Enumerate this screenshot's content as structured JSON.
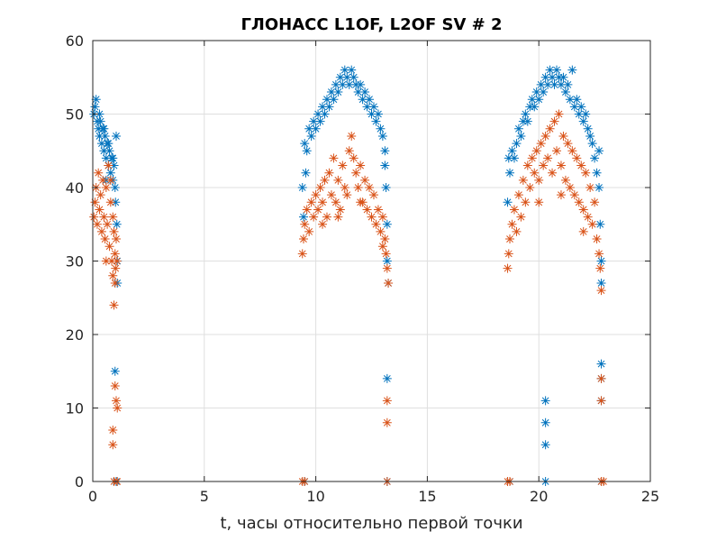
{
  "chart_data": {
    "type": "scatter",
    "title": "ГЛОНАСС L1OF, L2OF SV # 2",
    "xlabel": "t, часы относительно первой точки",
    "ylabel": "",
    "xlim": [
      0,
      25
    ],
    "ylim": [
      0,
      60
    ],
    "xticks": [
      0,
      5,
      10,
      15,
      20,
      25
    ],
    "yticks": [
      0,
      10,
      20,
      30,
      40,
      50,
      60
    ],
    "xtick_labels": [
      "0",
      "5",
      "10",
      "15",
      "20",
      "25"
    ],
    "ytick_labels": [
      "0",
      "10",
      "20",
      "30",
      "40",
      "50",
      "60"
    ],
    "grid": true,
    "marker": "*",
    "series": [
      {
        "name": "L1OF",
        "color": "#0072BD",
        "points": [
          [
            0.05,
            50
          ],
          [
            0.1,
            51
          ],
          [
            0.15,
            52
          ],
          [
            0.2,
            49
          ],
          [
            0.25,
            48
          ],
          [
            0.3,
            47
          ],
          [
            0.35,
            49
          ],
          [
            0.4,
            46
          ],
          [
            0.45,
            48
          ],
          [
            0.5,
            45
          ],
          [
            0.55,
            47
          ],
          [
            0.6,
            44
          ],
          [
            0.65,
            46
          ],
          [
            0.7,
            43
          ],
          [
            0.75,
            45
          ],
          [
            0.8,
            42
          ],
          [
            0.85,
            44
          ],
          [
            0.9,
            41
          ],
          [
            0.95,
            43
          ],
          [
            1.0,
            40
          ],
          [
            1.02,
            38
          ],
          [
            1.05,
            47
          ],
          [
            1.08,
            35
          ],
          [
            1.1,
            30
          ],
          [
            1.1,
            27
          ],
          [
            0.3,
            50
          ],
          [
            0.5,
            48
          ],
          [
            0.7,
            46
          ],
          [
            0.9,
            44
          ],
          [
            0.6,
            41
          ],
          [
            1.0,
            15
          ],
          [
            1.05,
            0
          ],
          [
            9.4,
            40
          ],
          [
            9.5,
            46
          ],
          [
            9.6,
            45
          ],
          [
            9.7,
            48
          ],
          [
            9.8,
            47
          ],
          [
            9.9,
            49
          ],
          [
            10.0,
            48
          ],
          [
            10.1,
            50
          ],
          [
            10.2,
            49
          ],
          [
            10.3,
            51
          ],
          [
            10.4,
            50
          ],
          [
            10.5,
            52
          ],
          [
            10.6,
            51
          ],
          [
            10.7,
            53
          ],
          [
            10.8,
            52
          ],
          [
            10.9,
            54
          ],
          [
            11.0,
            53
          ],
          [
            11.1,
            55
          ],
          [
            11.2,
            54
          ],
          [
            11.3,
            56
          ],
          [
            11.4,
            55
          ],
          [
            11.5,
            54
          ],
          [
            11.6,
            56
          ],
          [
            11.7,
            55
          ],
          [
            11.8,
            54
          ],
          [
            11.9,
            53
          ],
          [
            12.0,
            54
          ],
          [
            12.1,
            52
          ],
          [
            12.2,
            53
          ],
          [
            12.3,
            51
          ],
          [
            12.4,
            52
          ],
          [
            12.5,
            50
          ],
          [
            12.6,
            51
          ],
          [
            12.7,
            49
          ],
          [
            12.8,
            50
          ],
          [
            12.9,
            48
          ],
          [
            13.0,
            47
          ],
          [
            13.1,
            45
          ],
          [
            13.15,
            40
          ],
          [
            13.2,
            35
          ],
          [
            13.2,
            30
          ],
          [
            13.25,
            27
          ],
          [
            9.45,
            36
          ],
          [
            9.55,
            42
          ],
          [
            13.1,
            43
          ],
          [
            13.2,
            14
          ],
          [
            13.2,
            0
          ],
          [
            9.5,
            0
          ],
          [
            18.6,
            38
          ],
          [
            18.7,
            42
          ],
          [
            18.8,
            45
          ],
          [
            18.9,
            44
          ],
          [
            19.0,
            46
          ],
          [
            19.1,
            48
          ],
          [
            19.2,
            47
          ],
          [
            19.3,
            49
          ],
          [
            19.4,
            50
          ],
          [
            19.5,
            49
          ],
          [
            19.6,
            51
          ],
          [
            19.7,
            52
          ],
          [
            19.8,
            51
          ],
          [
            19.9,
            53
          ],
          [
            20.0,
            52
          ],
          [
            20.1,
            54
          ],
          [
            20.2,
            53
          ],
          [
            20.3,
            55
          ],
          [
            20.4,
            54
          ],
          [
            20.5,
            56
          ],
          [
            20.6,
            55
          ],
          [
            20.7,
            54
          ],
          [
            20.8,
            56
          ],
          [
            20.9,
            55
          ],
          [
            21.0,
            54
          ],
          [
            21.1,
            55
          ],
          [
            21.2,
            53
          ],
          [
            21.3,
            54
          ],
          [
            21.4,
            52
          ],
          [
            21.5,
            56
          ],
          [
            21.6,
            51
          ],
          [
            21.7,
            52
          ],
          [
            21.8,
            50
          ],
          [
            21.9,
            51
          ],
          [
            22.0,
            49
          ],
          [
            22.1,
            50
          ],
          [
            22.2,
            48
          ],
          [
            22.3,
            47
          ],
          [
            22.4,
            46
          ],
          [
            22.5,
            44
          ],
          [
            22.6,
            42
          ],
          [
            22.7,
            40
          ],
          [
            22.75,
            35
          ],
          [
            22.8,
            30
          ],
          [
            22.8,
            27
          ],
          [
            18.65,
            44
          ],
          [
            22.7,
            45
          ],
          [
            20.3,
            11
          ],
          [
            20.3,
            8
          ],
          [
            20.3,
            5
          ],
          [
            20.3,
            0
          ],
          [
            22.8,
            16
          ],
          [
            22.8,
            14
          ],
          [
            22.8,
            11
          ],
          [
            22.8,
            0
          ],
          [
            18.7,
            0
          ]
        ]
      },
      {
        "name": "L2OF",
        "color": "#D95319",
        "points": [
          [
            0.05,
            36
          ],
          [
            0.1,
            38
          ],
          [
            0.15,
            40
          ],
          [
            0.2,
            35
          ],
          [
            0.25,
            42
          ],
          [
            0.3,
            37
          ],
          [
            0.35,
            39
          ],
          [
            0.4,
            34
          ],
          [
            0.45,
            41
          ],
          [
            0.5,
            36
          ],
          [
            0.55,
            33
          ],
          [
            0.6,
            40
          ],
          [
            0.65,
            35
          ],
          [
            0.7,
            43
          ],
          [
            0.75,
            32
          ],
          [
            0.8,
            38
          ],
          [
            0.85,
            30
          ],
          [
            0.9,
            36
          ],
          [
            0.95,
            34
          ],
          [
            1.0,
            31
          ],
          [
            1.02,
            29
          ],
          [
            1.05,
            33
          ],
          [
            1.08,
            30
          ],
          [
            0.6,
            30
          ],
          [
            0.8,
            41
          ],
          [
            0.9,
            28
          ],
          [
            1.0,
            27
          ],
          [
            0.95,
            24
          ],
          [
            1.0,
            13
          ],
          [
            1.05,
            11
          ],
          [
            1.1,
            10
          ],
          [
            0.9,
            7
          ],
          [
            0.9,
            5
          ],
          [
            0.95,
            0
          ],
          [
            1.1,
            0
          ],
          [
            9.4,
            31
          ],
          [
            9.5,
            35
          ],
          [
            9.6,
            37
          ],
          [
            9.7,
            34
          ],
          [
            9.8,
            38
          ],
          [
            9.9,
            36
          ],
          [
            10.0,
            39
          ],
          [
            10.1,
            37
          ],
          [
            10.2,
            40
          ],
          [
            10.3,
            38
          ],
          [
            10.4,
            41
          ],
          [
            10.5,
            36
          ],
          [
            10.6,
            42
          ],
          [
            10.7,
            39
          ],
          [
            10.8,
            44
          ],
          [
            10.9,
            38
          ],
          [
            11.0,
            41
          ],
          [
            11.1,
            37
          ],
          [
            11.2,
            43
          ],
          [
            11.3,
            40
          ],
          [
            11.4,
            39
          ],
          [
            11.5,
            45
          ],
          [
            11.6,
            47
          ],
          [
            11.7,
            44
          ],
          [
            11.8,
            42
          ],
          [
            11.9,
            40
          ],
          [
            12.0,
            43
          ],
          [
            12.1,
            38
          ],
          [
            12.2,
            41
          ],
          [
            12.3,
            37
          ],
          [
            12.4,
            40
          ],
          [
            12.5,
            36
          ],
          [
            12.6,
            39
          ],
          [
            12.7,
            35
          ],
          [
            12.8,
            37
          ],
          [
            12.9,
            34
          ],
          [
            13.0,
            36
          ],
          [
            13.1,
            33
          ],
          [
            13.15,
            31
          ],
          [
            13.2,
            29
          ],
          [
            13.25,
            27
          ],
          [
            9.45,
            33
          ],
          [
            10.3,
            35
          ],
          [
            11.0,
            36
          ],
          [
            12.0,
            38
          ],
          [
            13.0,
            32
          ],
          [
            13.2,
            11
          ],
          [
            13.2,
            8
          ],
          [
            13.2,
            0
          ],
          [
            9.4,
            0
          ],
          [
            9.5,
            0
          ],
          [
            18.6,
            29
          ],
          [
            18.7,
            33
          ],
          [
            18.8,
            35
          ],
          [
            18.9,
            37
          ],
          [
            19.0,
            34
          ],
          [
            19.1,
            39
          ],
          [
            19.2,
            36
          ],
          [
            19.3,
            41
          ],
          [
            19.4,
            38
          ],
          [
            19.5,
            43
          ],
          [
            19.6,
            40
          ],
          [
            19.7,
            44
          ],
          [
            19.8,
            42
          ],
          [
            19.9,
            45
          ],
          [
            20.0,
            41
          ],
          [
            20.1,
            46
          ],
          [
            20.2,
            43
          ],
          [
            20.3,
            47
          ],
          [
            20.4,
            44
          ],
          [
            20.5,
            48
          ],
          [
            20.6,
            42
          ],
          [
            20.7,
            49
          ],
          [
            20.8,
            45
          ],
          [
            20.9,
            50
          ],
          [
            21.0,
            43
          ],
          [
            21.1,
            47
          ],
          [
            21.2,
            41
          ],
          [
            21.3,
            46
          ],
          [
            21.4,
            40
          ],
          [
            21.5,
            45
          ],
          [
            21.6,
            39
          ],
          [
            21.7,
            44
          ],
          [
            21.8,
            38
          ],
          [
            21.9,
            43
          ],
          [
            22.0,
            37
          ],
          [
            22.1,
            42
          ],
          [
            22.2,
            36
          ],
          [
            22.3,
            40
          ],
          [
            22.4,
            35
          ],
          [
            22.5,
            38
          ],
          [
            22.6,
            33
          ],
          [
            22.7,
            31
          ],
          [
            22.75,
            29
          ],
          [
            22.8,
            26
          ],
          [
            18.65,
            31
          ],
          [
            20.0,
            38
          ],
          [
            21.0,
            39
          ],
          [
            22.0,
            34
          ],
          [
            22.8,
            14
          ],
          [
            22.8,
            11
          ],
          [
            22.8,
            0
          ],
          [
            22.9,
            0
          ],
          [
            18.6,
            0
          ],
          [
            18.7,
            0
          ]
        ]
      }
    ]
  }
}
